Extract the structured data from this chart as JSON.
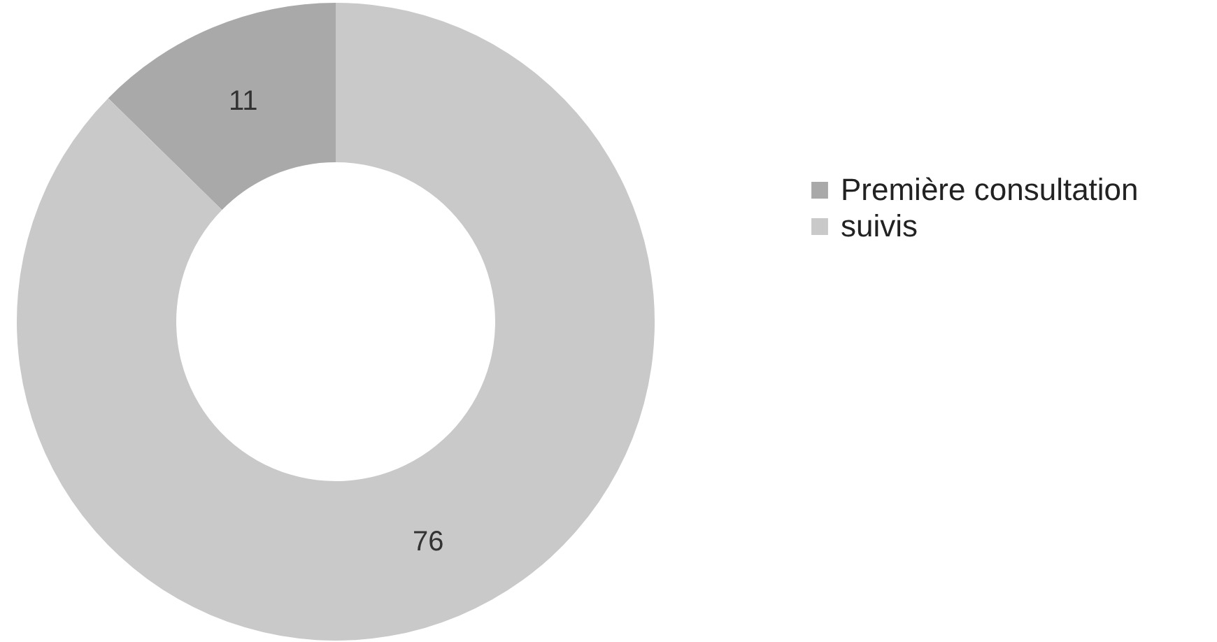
{
  "chart_data": {
    "type": "donut",
    "categories": [
      "Première consultation",
      "suivis"
    ],
    "values": [
      11,
      76
    ],
    "colors": [
      "#a9a9a9",
      "#c9c9c9"
    ],
    "data_labels": true,
    "legend": "right"
  }
}
